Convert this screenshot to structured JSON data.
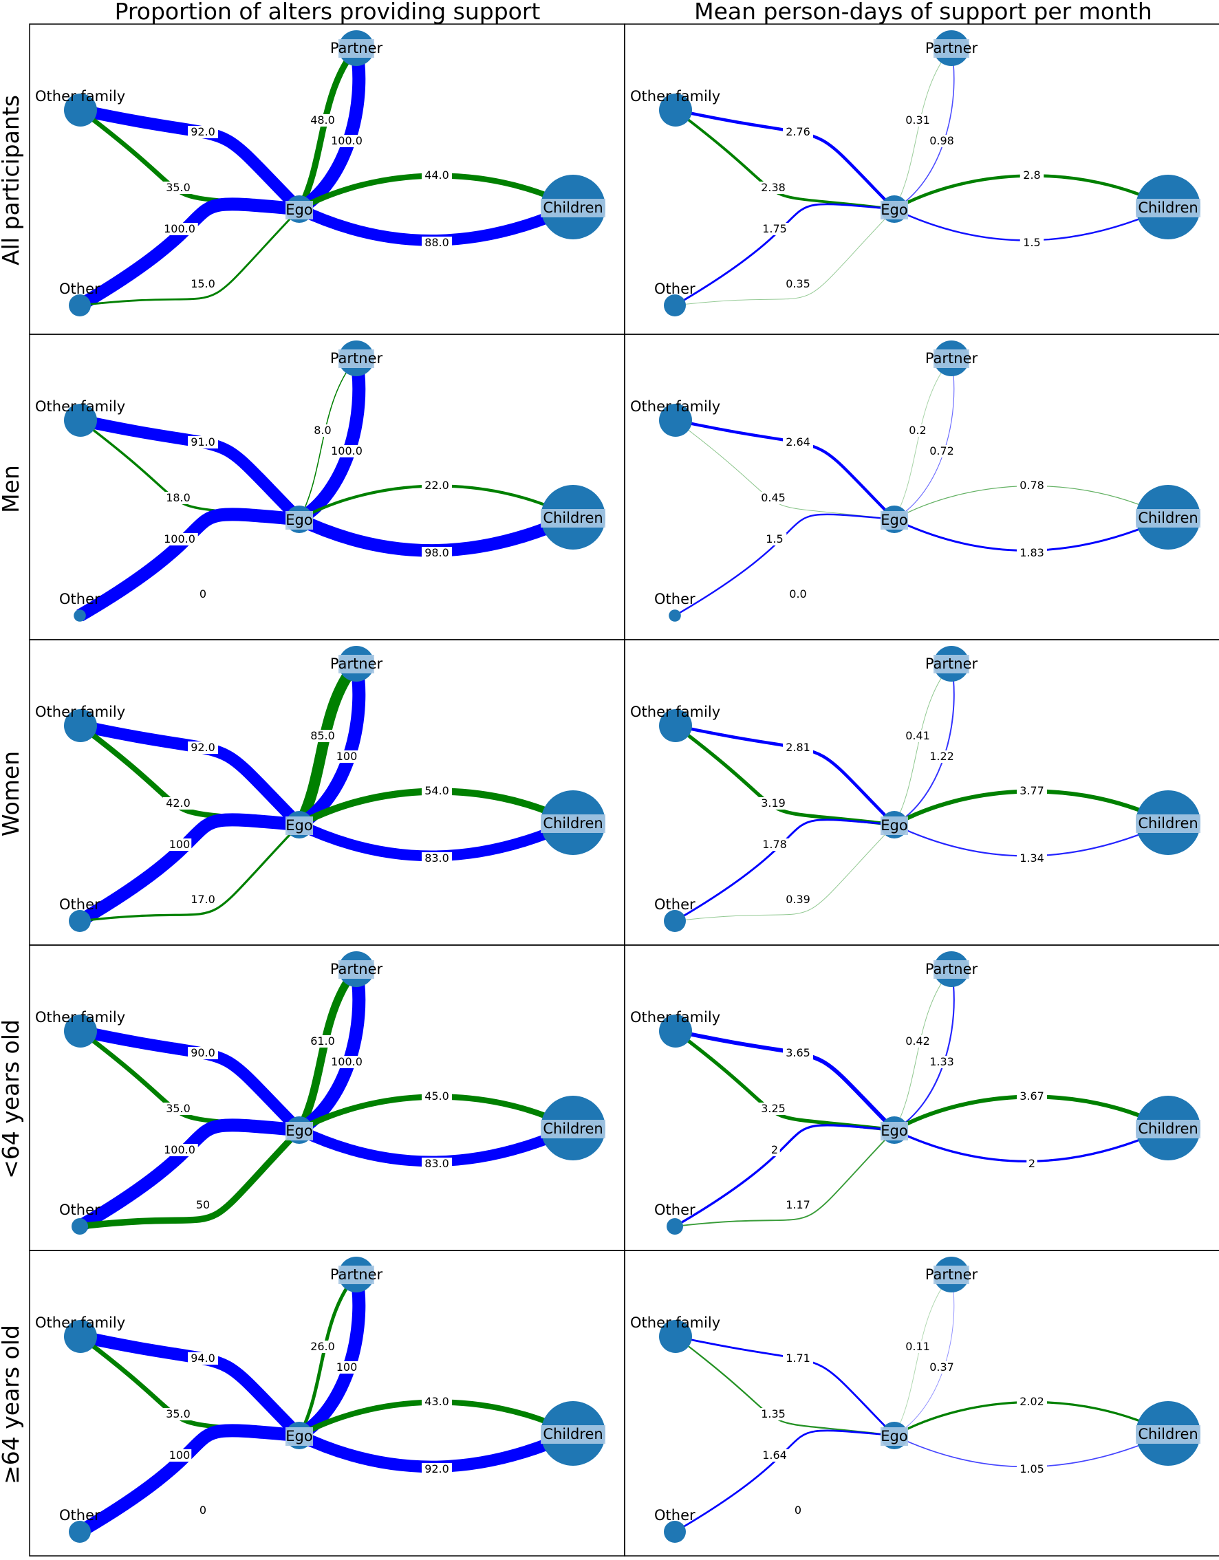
{
  "columns": [
    "Proportion of alters providing support",
    "Mean person-days of support per month"
  ],
  "rows": [
    "All participants",
    "Men",
    "Women",
    "<64 years old",
    "≥64 years old"
  ],
  "node_names": {
    "ego": "Ego",
    "partner": "Partner",
    "other_family": "Other family",
    "children": "Children",
    "other": "Other"
  },
  "colors": {
    "node": "#1f77b4",
    "node_label_band": "#a9c8e3",
    "blue_edges": "#0000ff",
    "green_edges": "#008000"
  },
  "panels": [
    {
      "row": 0,
      "col": 0,
      "node_size": {
        "partner": 1.0,
        "other_family": 1.0,
        "children": 1.0,
        "other": 1.0
      },
      "edges": [
        {
          "to": "partner",
          "kind": "green",
          "label": "48.0",
          "value": 48
        },
        {
          "to": "partner",
          "kind": "blue",
          "label": "100.0",
          "value": 100
        },
        {
          "to": "other_family",
          "kind": "blue",
          "label": "92.0",
          "value": 92
        },
        {
          "to": "other_family",
          "kind": "green",
          "label": "35.0",
          "value": 35
        },
        {
          "to": "children",
          "kind": "green",
          "label": "44.0",
          "value": 44
        },
        {
          "to": "children",
          "kind": "blue",
          "label": "88.0",
          "value": 88
        },
        {
          "to": "other",
          "kind": "blue",
          "label": "100.0",
          "value": 100
        },
        {
          "to": "other",
          "kind": "green",
          "label": "15.0",
          "value": 15
        }
      ]
    },
    {
      "row": 0,
      "col": 1,
      "node_size": {
        "partner": 1.0,
        "other_family": 1.0,
        "children": 1.0,
        "other": 1.0
      },
      "edges": [
        {
          "to": "partner",
          "kind": "green",
          "label": "0.31",
          "value": 0.31
        },
        {
          "to": "partner",
          "kind": "blue",
          "label": "0.98",
          "value": 0.98
        },
        {
          "to": "other_family",
          "kind": "blue",
          "label": "2.76",
          "value": 2.76
        },
        {
          "to": "other_family",
          "kind": "green",
          "label": "2.38",
          "value": 2.38
        },
        {
          "to": "children",
          "kind": "green",
          "label": "2.8",
          "value": 2.8
        },
        {
          "to": "children",
          "kind": "blue",
          "label": "1.5",
          "value": 1.5
        },
        {
          "to": "other",
          "kind": "blue",
          "label": "1.75",
          "value": 1.75
        },
        {
          "to": "other",
          "kind": "green",
          "label": "0.35",
          "value": 0.35
        }
      ]
    },
    {
      "row": 1,
      "col": 0,
      "node_size": {
        "partner": 1.0,
        "other_family": 1.0,
        "children": 1.0,
        "other": 0.55
      },
      "edges": [
        {
          "to": "partner",
          "kind": "green",
          "label": "8.0",
          "value": 8
        },
        {
          "to": "partner",
          "kind": "blue",
          "label": "100.0",
          "value": 100
        },
        {
          "to": "other_family",
          "kind": "blue",
          "label": "91.0",
          "value": 91
        },
        {
          "to": "other_family",
          "kind": "green",
          "label": "18.0",
          "value": 18
        },
        {
          "to": "children",
          "kind": "green",
          "label": "22.0",
          "value": 22
        },
        {
          "to": "children",
          "kind": "blue",
          "label": "98.0",
          "value": 98
        },
        {
          "to": "other",
          "kind": "blue",
          "label": "100.0",
          "value": 100
        },
        {
          "to": "other",
          "kind": "green",
          "label": "0",
          "value": 0
        }
      ]
    },
    {
      "row": 1,
      "col": 1,
      "node_size": {
        "partner": 1.0,
        "other_family": 1.0,
        "children": 1.0,
        "other": 0.55
      },
      "edges": [
        {
          "to": "partner",
          "kind": "green",
          "label": "0.2",
          "value": 0.2
        },
        {
          "to": "partner",
          "kind": "blue",
          "label": "0.72",
          "value": 0.72
        },
        {
          "to": "other_family",
          "kind": "blue",
          "label": "2.64",
          "value": 2.64
        },
        {
          "to": "other_family",
          "kind": "green",
          "label": "0.45",
          "value": 0.45
        },
        {
          "to": "children",
          "kind": "green",
          "label": "0.78",
          "value": 0.78
        },
        {
          "to": "children",
          "kind": "blue",
          "label": "1.83",
          "value": 1.83
        },
        {
          "to": "other",
          "kind": "blue",
          "label": "1.5",
          "value": 1.5
        },
        {
          "to": "other",
          "kind": "green",
          "label": "0.0",
          "value": 0
        }
      ]
    },
    {
      "row": 2,
      "col": 0,
      "node_size": {
        "partner": 1.0,
        "other_family": 1.0,
        "children": 1.0,
        "other": 1.0
      },
      "edges": [
        {
          "to": "partner",
          "kind": "green",
          "label": "85.0",
          "value": 85
        },
        {
          "to": "partner",
          "kind": "blue",
          "label": "100",
          "value": 100
        },
        {
          "to": "other_family",
          "kind": "blue",
          "label": "92.0",
          "value": 92
        },
        {
          "to": "other_family",
          "kind": "green",
          "label": "42.0",
          "value": 42
        },
        {
          "to": "children",
          "kind": "green",
          "label": "54.0",
          "value": 54
        },
        {
          "to": "children",
          "kind": "blue",
          "label": "83.0",
          "value": 83
        },
        {
          "to": "other",
          "kind": "blue",
          "label": "100",
          "value": 100
        },
        {
          "to": "other",
          "kind": "green",
          "label": "17.0",
          "value": 17
        }
      ]
    },
    {
      "row": 2,
      "col": 1,
      "node_size": {
        "partner": 1.0,
        "other_family": 1.0,
        "children": 1.0,
        "other": 1.0
      },
      "edges": [
        {
          "to": "partner",
          "kind": "green",
          "label": "0.41",
          "value": 0.41
        },
        {
          "to": "partner",
          "kind": "blue",
          "label": "1.22",
          "value": 1.22
        },
        {
          "to": "other_family",
          "kind": "blue",
          "label": "2.81",
          "value": 2.81
        },
        {
          "to": "other_family",
          "kind": "green",
          "label": "3.19",
          "value": 3.19
        },
        {
          "to": "children",
          "kind": "green",
          "label": "3.77",
          "value": 3.77
        },
        {
          "to": "children",
          "kind": "blue",
          "label": "1.34",
          "value": 1.34
        },
        {
          "to": "other",
          "kind": "blue",
          "label": "1.78",
          "value": 1.78
        },
        {
          "to": "other",
          "kind": "green",
          "label": "0.39",
          "value": 0.39
        }
      ]
    },
    {
      "row": 3,
      "col": 0,
      "node_size": {
        "partner": 1.0,
        "other_family": 1.0,
        "children": 1.0,
        "other": 0.75
      },
      "edges": [
        {
          "to": "partner",
          "kind": "green",
          "label": "61.0",
          "value": 61
        },
        {
          "to": "partner",
          "kind": "blue",
          "label": "100.0",
          "value": 100
        },
        {
          "to": "other_family",
          "kind": "blue",
          "label": "90.0",
          "value": 90
        },
        {
          "to": "other_family",
          "kind": "green",
          "label": "35.0",
          "value": 35
        },
        {
          "to": "children",
          "kind": "green",
          "label": "45.0",
          "value": 45
        },
        {
          "to": "children",
          "kind": "blue",
          "label": "83.0",
          "value": 83
        },
        {
          "to": "other",
          "kind": "blue",
          "label": "100.0",
          "value": 100
        },
        {
          "to": "other",
          "kind": "green",
          "label": "50",
          "value": 50
        }
      ]
    },
    {
      "row": 3,
      "col": 1,
      "node_size": {
        "partner": 1.0,
        "other_family": 1.0,
        "children": 1.0,
        "other": 0.75
      },
      "edges": [
        {
          "to": "partner",
          "kind": "green",
          "label": "0.42",
          "value": 0.42
        },
        {
          "to": "partner",
          "kind": "blue",
          "label": "1.33",
          "value": 1.33
        },
        {
          "to": "other_family",
          "kind": "blue",
          "label": "3.65",
          "value": 3.65
        },
        {
          "to": "other_family",
          "kind": "green",
          "label": "3.25",
          "value": 3.25
        },
        {
          "to": "children",
          "kind": "green",
          "label": "3.67",
          "value": 3.67
        },
        {
          "to": "children",
          "kind": "blue",
          "label": "2",
          "value": 2
        },
        {
          "to": "other",
          "kind": "blue",
          "label": "2",
          "value": 2
        },
        {
          "to": "other",
          "kind": "green",
          "label": "1.17",
          "value": 1.17
        }
      ]
    },
    {
      "row": 4,
      "col": 0,
      "node_size": {
        "partner": 1.0,
        "other_family": 1.0,
        "children": 1.0,
        "other": 1.0
      },
      "edges": [
        {
          "to": "partner",
          "kind": "green",
          "label": "26.0",
          "value": 26
        },
        {
          "to": "partner",
          "kind": "blue",
          "label": "100",
          "value": 100
        },
        {
          "to": "other_family",
          "kind": "blue",
          "label": "94.0",
          "value": 94
        },
        {
          "to": "other_family",
          "kind": "green",
          "label": "35.0",
          "value": 35
        },
        {
          "to": "children",
          "kind": "green",
          "label": "43.0",
          "value": 43
        },
        {
          "to": "children",
          "kind": "blue",
          "label": "92.0",
          "value": 92
        },
        {
          "to": "other",
          "kind": "blue",
          "label": "100",
          "value": 100
        },
        {
          "to": "other",
          "kind": "green",
          "label": "0",
          "value": 0
        }
      ]
    },
    {
      "row": 4,
      "col": 1,
      "node_size": {
        "partner": 1.0,
        "other_family": 1.0,
        "children": 1.0,
        "other": 1.0
      },
      "edges": [
        {
          "to": "partner",
          "kind": "green",
          "label": "0.11",
          "value": 0.11
        },
        {
          "to": "partner",
          "kind": "blue",
          "label": "0.37",
          "value": 0.37
        },
        {
          "to": "other_family",
          "kind": "blue",
          "label": "1.71",
          "value": 1.71
        },
        {
          "to": "other_family",
          "kind": "green",
          "label": "1.35",
          "value": 1.35
        },
        {
          "to": "children",
          "kind": "green",
          "label": "2.02",
          "value": 2.02
        },
        {
          "to": "children",
          "kind": "blue",
          "label": "1.05",
          "value": 1.05
        },
        {
          "to": "other",
          "kind": "blue",
          "label": "1.64",
          "value": 1.64
        },
        {
          "to": "other",
          "kind": "green",
          "label": "0",
          "value": 0
        }
      ]
    }
  ]
}
